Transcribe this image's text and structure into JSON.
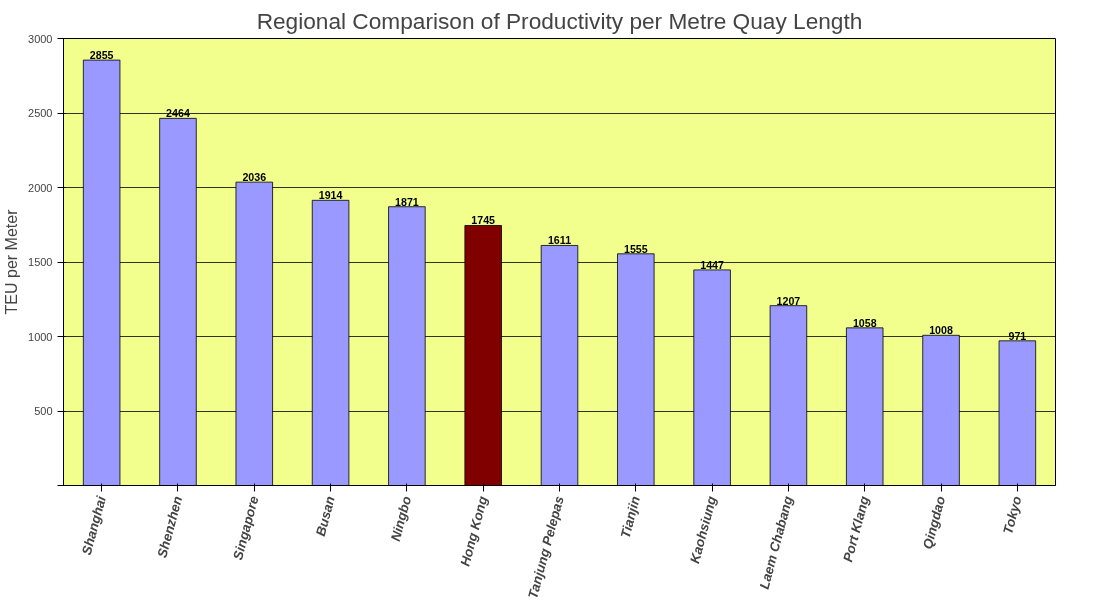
{
  "chart_data": {
    "type": "bar",
    "title": "Regional Comparison of Productivity per Metre Quay Length",
    "ylabel": "TEU per Meter",
    "categories": [
      "Shanghai",
      "Shenzhen",
      "Singapore",
      "Busan",
      "Ningbo",
      "Hong Kong",
      "Tanjung Pelepas",
      "Tianjin",
      "Kaohsiung",
      "Laem Chabang",
      "Port Klang",
      "Qingdao",
      "Tokyo"
    ],
    "values": [
      2855,
      2464,
      2036,
      1914,
      1871,
      1745,
      1611,
      1555,
      1447,
      1207,
      1058,
      1008,
      971
    ],
    "colors": [
      "#9999ff",
      "#9999ff",
      "#9999ff",
      "#9999ff",
      "#9999ff",
      "#800000",
      "#9999ff",
      "#9999ff",
      "#9999ff",
      "#9999ff",
      "#9999ff",
      "#9999ff",
      "#9999ff"
    ],
    "ylim": [
      0,
      3000
    ],
    "yticks": [
      {
        "value": 0,
        "label": null
      },
      500,
      1000,
      1500,
      2000,
      2500,
      3000
    ],
    "grid": "y",
    "data_labels": true
  }
}
